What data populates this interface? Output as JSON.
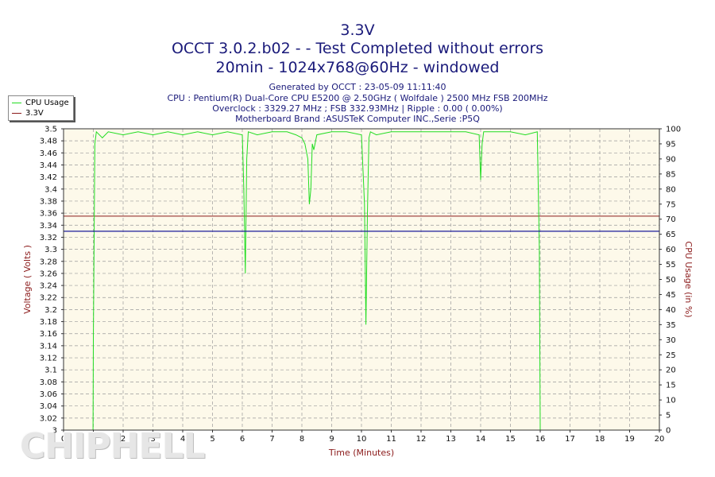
{
  "title_lines": [
    "3.3V",
    "OCCT 3.0.2.b02 -  - Test Completed without errors",
    "20min - 1024x768@60Hz - windowed"
  ],
  "subtitle_lines": [
    "Generated by OCCT : 23-05-09 11:11:40",
    "CPU : Pentium(R) Dual-Core CPU E5200 @ 2.50GHz ( Wolfdale ) 2500 MHz FSB 200MHz",
    "Overclock : 3329.27 MHz ; FSB 332.93MHz | Ripple : 0.00 ( 0.00%)",
    "Motherboard Brand :ASUSTeK Computer INC.,Serie :P5Q"
  ],
  "watermark": "CHIPHELL",
  "colors": {
    "cpu_usage": "#22dd22",
    "voltage": "#1a1a99",
    "threshold": "#8b1a1a",
    "plot_bg": "#fdf9ea",
    "axis_text": "#8b1a1a",
    "title_text": "#1a1a7a"
  },
  "chart_data": {
    "type": "line",
    "xlabel": "Time (Minutes)",
    "ylabel": "Voltage ( Volts )",
    "y2label": "CPU Usage (in %)",
    "xlim": [
      0,
      20
    ],
    "ylim": [
      3.0,
      3.5
    ],
    "y2lim": [
      0,
      100
    ],
    "x_ticks": [
      "0",
      "1",
      "2",
      "3",
      "4",
      "5",
      "6",
      "7",
      "8",
      "9",
      "10",
      "11",
      "12",
      "13",
      "14",
      "15",
      "16",
      "17",
      "18",
      "19",
      "20"
    ],
    "y_ticks": [
      "3",
      "3.02",
      "3.04",
      "3.06",
      "3.08",
      "3.1",
      "3.12",
      "3.14",
      "3.16",
      "3.18",
      "3.2",
      "3.22",
      "3.24",
      "3.26",
      "3.28",
      "3.3",
      "3.32",
      "3.34",
      "3.36",
      "3.38",
      "3.4",
      "3.42",
      "3.44",
      "3.46",
      "3.48",
      "3.5"
    ],
    "y2_ticks": [
      "0",
      "5",
      "10",
      "15",
      "20",
      "25",
      "30",
      "35",
      "40",
      "45",
      "50",
      "55",
      "60",
      "65",
      "70",
      "75",
      "80",
      "85",
      "90",
      "95",
      "100"
    ],
    "grid": true,
    "legend_position": "top-left",
    "series": [
      {
        "name": "CPU Usage",
        "axis": "y2",
        "x": [
          0,
          0.99,
          1.0,
          1.05,
          1.1,
          1.3,
          1.5,
          2.0,
          2.5,
          3.0,
          3.5,
          4.0,
          4.5,
          5.0,
          5.5,
          6.0,
          6.05,
          6.1,
          6.15,
          6.2,
          6.5,
          7.0,
          7.5,
          7.8,
          8.0,
          8.1,
          8.2,
          8.25,
          8.3,
          8.35,
          8.4,
          8.5,
          9.0,
          9.5,
          10.0,
          10.1,
          10.15,
          10.2,
          10.25,
          10.3,
          10.5,
          11.0,
          11.5,
          12.0,
          12.5,
          13.0,
          13.5,
          13.95,
          14.0,
          14.05,
          14.1,
          14.5,
          15.0,
          15.5,
          15.9,
          15.97,
          16.0,
          16.02
        ],
        "y": [
          0,
          0,
          30,
          95,
          99,
          97,
          99,
          98,
          99,
          98,
          99,
          98,
          99,
          98,
          99,
          98,
          80,
          52,
          90,
          99,
          98,
          99,
          99,
          98,
          97,
          95,
          90,
          75,
          80,
          95,
          93,
          98,
          99,
          99,
          98,
          75,
          35,
          72,
          97,
          99,
          98,
          99,
          99,
          99,
          99,
          99,
          99,
          98,
          83,
          95,
          99,
          99,
          99,
          98,
          99,
          60,
          0,
          0
        ]
      },
      {
        "name": "3.3V",
        "axis": "y",
        "x": [
          0,
          20
        ],
        "y": [
          3.33,
          3.33
        ]
      }
    ],
    "reference_lines": [
      {
        "axis": "y2",
        "value": 71
      }
    ]
  }
}
